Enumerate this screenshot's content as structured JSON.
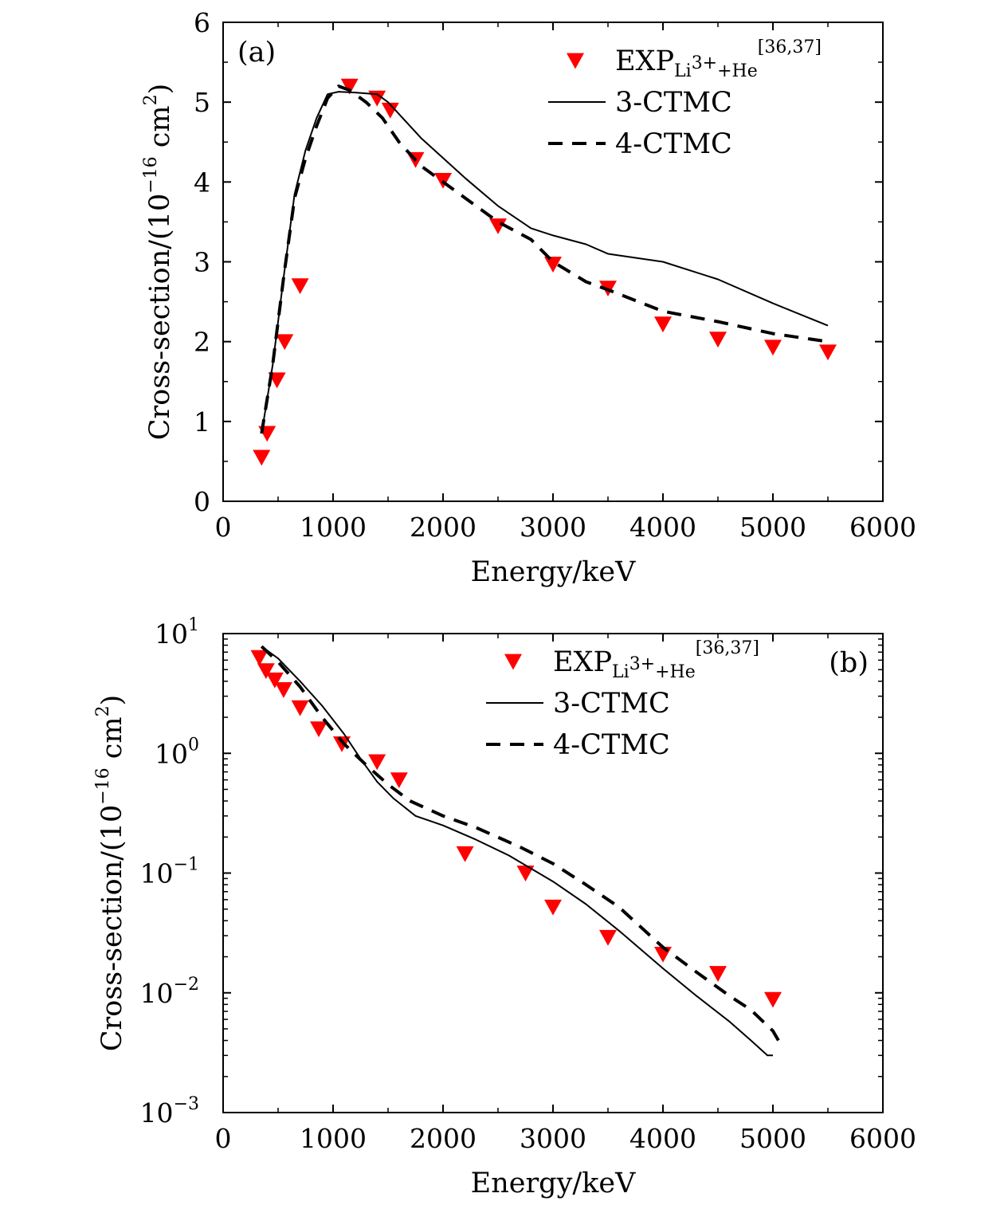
{
  "chart_data": [
    {
      "type": "line",
      "panel_label": "(a)",
      "xlabel": "Energy/keV",
      "ylabel": "Cross-section/(10",
      "ylabel_exp": "−16",
      "ylabel_unit": " cm",
      "ylabel_unit_exp": "2",
      "ylabel_close": ")",
      "xlim": [
        0,
        6000
      ],
      "ylim": [
        0,
        6
      ],
      "yscale": "linear",
      "xticks": [
        0,
        1000,
        2000,
        3000,
        4000,
        5000,
        6000
      ],
      "xtick_labels": [
        "0",
        "1000",
        "2000",
        "3000",
        "4000",
        "5000",
        "6000"
      ],
      "yticks": [
        0,
        1,
        2,
        3,
        4,
        5,
        6
      ],
      "ytick_labels": [
        "0",
        "1",
        "2",
        "3",
        "4",
        "5",
        "6"
      ],
      "grid": false,
      "legend_placement": "top-right",
      "legend": {
        "exp_main": "EXP",
        "exp_sub": "Li3+ +He",
        "exp_sub_a": "Li",
        "exp_sub_b": "3+",
        "exp_sub_c": "+He",
        "exp_sup": "[36,37]",
        "ctmc3": "3-CTMC",
        "ctmc4": "4-CTMC"
      },
      "series": [
        {
          "name": "EXP",
          "kind": "marker",
          "color": "#ff0000",
          "x": [
            350,
            400,
            490,
            560,
            700,
            1150,
            1400,
            1520,
            1750,
            2000,
            2500,
            3000,
            3500,
            4000,
            4500,
            5000,
            5500
          ],
          "y": [
            0.55,
            0.85,
            1.52,
            2.0,
            2.7,
            5.2,
            5.05,
            4.9,
            4.28,
            4.02,
            3.45,
            2.97,
            2.67,
            2.22,
            2.03,
            1.93,
            1.87
          ]
        },
        {
          "name": "3-CTMC",
          "kind": "solid",
          "color": "#000000",
          "x": [
            350,
            450,
            550,
            650,
            750,
            850,
            950,
            1050,
            1200,
            1400,
            1500,
            1600,
            1800,
            2000,
            2200,
            2500,
            2800,
            3000,
            3300,
            3500,
            4000,
            4500,
            5000,
            5500
          ],
          "y": [
            0.85,
            1.7,
            2.8,
            3.85,
            4.4,
            4.8,
            5.1,
            5.13,
            5.12,
            5.1,
            5.0,
            4.85,
            4.55,
            4.3,
            4.05,
            3.7,
            3.42,
            3.33,
            3.22,
            3.1,
            3.0,
            2.78,
            2.48,
            2.2
          ]
        },
        {
          "name": "4-CTMC",
          "kind": "dashed",
          "color": "#000000",
          "x": [
            350,
            450,
            550,
            650,
            750,
            850,
            950,
            1050,
            1150,
            1300,
            1450,
            1600,
            1800,
            2000,
            2200,
            2500,
            2800,
            3000,
            3300,
            3500,
            4000,
            4500,
            5000,
            5500
          ],
          "y": [
            0.85,
            1.7,
            2.8,
            3.8,
            4.3,
            4.7,
            5.05,
            5.2,
            5.15,
            5.0,
            4.8,
            4.5,
            4.2,
            4.0,
            3.8,
            3.5,
            3.28,
            3.0,
            2.75,
            2.65,
            2.38,
            2.25,
            2.1,
            2.0
          ]
        }
      ]
    },
    {
      "type": "line",
      "panel_label": "(b)",
      "xlabel": "Energy/keV",
      "ylabel": "Cross-section/(10",
      "ylabel_exp": "−16",
      "ylabel_unit": " cm",
      "ylabel_unit_exp": "2",
      "ylabel_close": ")",
      "xlim": [
        0,
        6000
      ],
      "ylim": [
        0.001,
        10
      ],
      "yscale": "log",
      "xticks": [
        0,
        1000,
        2000,
        3000,
        4000,
        5000,
        6000
      ],
      "xtick_labels": [
        "0",
        "1000",
        "2000",
        "3000",
        "4000",
        "5000",
        "6000"
      ],
      "yticks": [
        0.001,
        0.01,
        0.1,
        1,
        10
      ],
      "ytick_base": [
        "10",
        "10",
        "10",
        "10",
        "10"
      ],
      "ytick_exp": [
        "−3",
        "−2",
        "−1",
        "0",
        "1"
      ],
      "grid": false,
      "legend_placement": "top-right",
      "legend": {
        "exp_main": "EXP",
        "exp_sub_a": "Li",
        "exp_sub_b": "3+",
        "exp_sub_c": "+He",
        "exp_sup": "[36,37]",
        "ctmc3": "3-CTMC",
        "ctmc4": "4-CTMC"
      },
      "series": [
        {
          "name": "EXP",
          "kind": "marker",
          "color": "#ff0000",
          "x": [
            330,
            390,
            470,
            550,
            700,
            870,
            1080,
            1400,
            1600,
            2200,
            2750,
            3000,
            3500,
            4000,
            4500,
            5000
          ],
          "y": [
            6.3,
            4.9,
            4.1,
            3.4,
            2.4,
            1.6,
            1.2,
            0.85,
            0.6,
            0.145,
            0.1,
            0.052,
            0.029,
            0.021,
            0.0145,
            0.0088
          ]
        },
        {
          "name": "3-CTMC",
          "kind": "solid",
          "color": "#000000",
          "x": [
            350,
            500,
            700,
            900,
            1100,
            1250,
            1400,
            1550,
            1750,
            2000,
            2300,
            2600,
            3000,
            3300,
            3600,
            4000,
            4300,
            4600,
            4800,
            4950,
            5000
          ],
          "y": [
            7.8,
            6.2,
            4.0,
            2.5,
            1.45,
            0.9,
            0.58,
            0.42,
            0.3,
            0.25,
            0.19,
            0.14,
            0.085,
            0.055,
            0.033,
            0.016,
            0.0095,
            0.0058,
            0.004,
            0.003,
            0.003
          ]
        },
        {
          "name": "4-CTMC",
          "kind": "dashed",
          "color": "#000000",
          "x": [
            350,
            500,
            700,
            900,
            1100,
            1300,
            1500,
            1700,
            2000,
            2300,
            2700,
            3000,
            3300,
            3600,
            4000,
            4300,
            4600,
            4800,
            5000,
            5050
          ],
          "y": [
            7.8,
            5.8,
            3.6,
            2.0,
            1.2,
            0.8,
            0.55,
            0.4,
            0.3,
            0.24,
            0.165,
            0.12,
            0.08,
            0.052,
            0.024,
            0.015,
            0.0095,
            0.0072,
            0.0048,
            0.004
          ]
        }
      ]
    }
  ]
}
